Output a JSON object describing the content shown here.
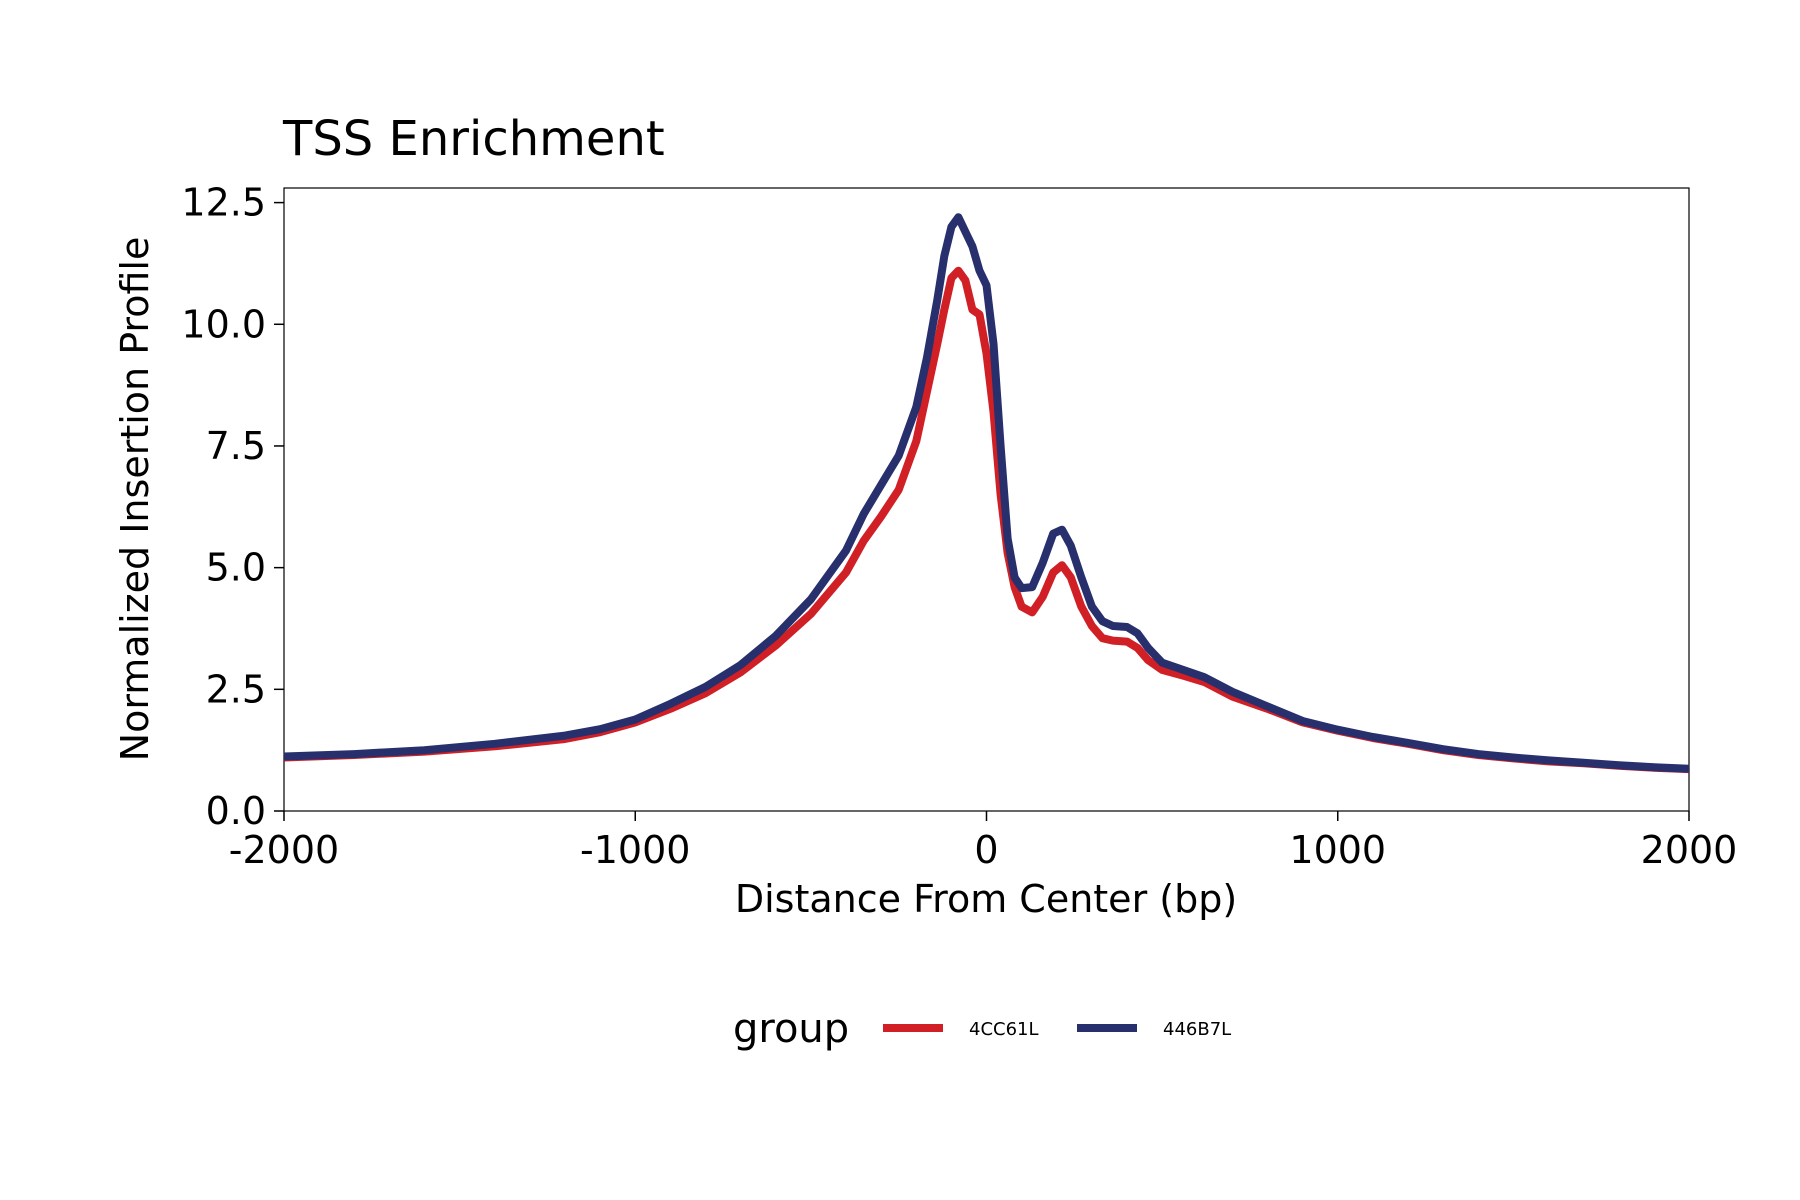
{
  "chart_data": {
    "type": "line",
    "title": "TSS Enrichment",
    "xlabel": "Distance From Center (bp)",
    "ylabel": "Normalized Insertion Profile",
    "xlim": [
      -2000,
      2000
    ],
    "ylim": [
      0,
      12.8
    ],
    "xticks": [
      -2000,
      -1000,
      0,
      1000,
      2000
    ],
    "xtick_labels": [
      "-2000",
      "-1000",
      "0",
      "1000",
      "2000"
    ],
    "yticks": [
      0,
      2.5,
      5,
      7.5,
      10,
      12.5
    ],
    "ytick_labels": [
      "0.0",
      "2.5",
      "5.0",
      "7.5",
      "10.0",
      "12.5"
    ],
    "grid": false,
    "legend": {
      "title": "group",
      "position": "bottom"
    },
    "series": [
      {
        "name": "4CC61L",
        "color": "#d11f26",
        "points": [
          [
            -2000,
            1.1
          ],
          [
            -1800,
            1.15
          ],
          [
            -1600,
            1.22
          ],
          [
            -1400,
            1.33
          ],
          [
            -1200,
            1.48
          ],
          [
            -1100,
            1.62
          ],
          [
            -1000,
            1.82
          ],
          [
            -900,
            2.1
          ],
          [
            -800,
            2.42
          ],
          [
            -700,
            2.85
          ],
          [
            -600,
            3.4
          ],
          [
            -500,
            4.05
          ],
          [
            -400,
            4.9
          ],
          [
            -350,
            5.55
          ],
          [
            -300,
            6.05
          ],
          [
            -250,
            6.6
          ],
          [
            -200,
            7.6
          ],
          [
            -170,
            8.6
          ],
          [
            -140,
            9.6
          ],
          [
            -120,
            10.3
          ],
          [
            -100,
            10.95
          ],
          [
            -80,
            11.1
          ],
          [
            -60,
            10.9
          ],
          [
            -40,
            10.3
          ],
          [
            -20,
            10.2
          ],
          [
            0,
            9.4
          ],
          [
            20,
            8.2
          ],
          [
            40,
            6.5
          ],
          [
            60,
            5.3
          ],
          [
            80,
            4.6
          ],
          [
            100,
            4.2
          ],
          [
            130,
            4.08
          ],
          [
            160,
            4.4
          ],
          [
            190,
            4.9
          ],
          [
            215,
            5.05
          ],
          [
            240,
            4.8
          ],
          [
            270,
            4.2
          ],
          [
            300,
            3.8
          ],
          [
            330,
            3.55
          ],
          [
            360,
            3.5
          ],
          [
            400,
            3.48
          ],
          [
            430,
            3.35
          ],
          [
            460,
            3.1
          ],
          [
            500,
            2.9
          ],
          [
            560,
            2.78
          ],
          [
            620,
            2.65
          ],
          [
            700,
            2.35
          ],
          [
            800,
            2.1
          ],
          [
            900,
            1.82
          ],
          [
            1000,
            1.65
          ],
          [
            1100,
            1.5
          ],
          [
            1200,
            1.38
          ],
          [
            1300,
            1.25
          ],
          [
            1400,
            1.15
          ],
          [
            1500,
            1.08
          ],
          [
            1600,
            1.02
          ],
          [
            1700,
            0.98
          ],
          [
            1800,
            0.93
          ],
          [
            1900,
            0.89
          ],
          [
            2000,
            0.86
          ]
        ]
      },
      {
        "name": "446B7L",
        "color": "#27306c",
        "points": [
          [
            -2000,
            1.12
          ],
          [
            -1800,
            1.17
          ],
          [
            -1600,
            1.25
          ],
          [
            -1400,
            1.38
          ],
          [
            -1200,
            1.55
          ],
          [
            -1100,
            1.68
          ],
          [
            -1000,
            1.88
          ],
          [
            -900,
            2.2
          ],
          [
            -800,
            2.55
          ],
          [
            -700,
            3.0
          ],
          [
            -600,
            3.6
          ],
          [
            -500,
            4.35
          ],
          [
            -400,
            5.35
          ],
          [
            -350,
            6.1
          ],
          [
            -300,
            6.7
          ],
          [
            -250,
            7.3
          ],
          [
            -200,
            8.3
          ],
          [
            -170,
            9.3
          ],
          [
            -140,
            10.5
          ],
          [
            -120,
            11.4
          ],
          [
            -100,
            12.0
          ],
          [
            -80,
            12.2
          ],
          [
            -60,
            11.9
          ],
          [
            -40,
            11.6
          ],
          [
            -20,
            11.1
          ],
          [
            0,
            10.8
          ],
          [
            20,
            9.6
          ],
          [
            40,
            7.5
          ],
          [
            60,
            5.6
          ],
          [
            80,
            4.8
          ],
          [
            100,
            4.58
          ],
          [
            130,
            4.6
          ],
          [
            160,
            5.1
          ],
          [
            190,
            5.7
          ],
          [
            215,
            5.78
          ],
          [
            240,
            5.45
          ],
          [
            270,
            4.8
          ],
          [
            300,
            4.2
          ],
          [
            330,
            3.9
          ],
          [
            360,
            3.8
          ],
          [
            400,
            3.78
          ],
          [
            430,
            3.65
          ],
          [
            460,
            3.35
          ],
          [
            500,
            3.05
          ],
          [
            560,
            2.9
          ],
          [
            620,
            2.75
          ],
          [
            700,
            2.45
          ],
          [
            800,
            2.15
          ],
          [
            900,
            1.85
          ],
          [
            1000,
            1.67
          ],
          [
            1100,
            1.52
          ],
          [
            1200,
            1.4
          ],
          [
            1300,
            1.27
          ],
          [
            1400,
            1.17
          ],
          [
            1500,
            1.1
          ],
          [
            1600,
            1.04
          ],
          [
            1700,
            0.99
          ],
          [
            1800,
            0.94
          ],
          [
            1900,
            0.9
          ],
          [
            2000,
            0.87
          ]
        ]
      }
    ]
  }
}
